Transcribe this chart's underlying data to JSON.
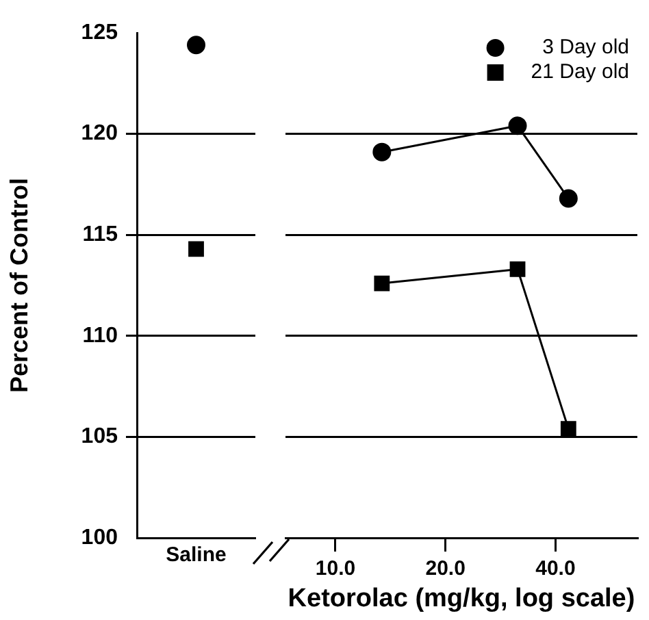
{
  "chart_data": [
    {
      "type": "line",
      "categories": [
        "Saline"
      ],
      "ylabel": "Percent of Control",
      "ylim": [
        100,
        125
      ],
      "yticks": [
        100,
        105,
        110,
        115,
        120,
        125
      ],
      "grid": "y",
      "tick_labels": "xy",
      "series": [
        {
          "color": "#000000",
          "marker": "circle",
          "values": [
            124.4
          ]
        },
        {
          "color": "#000000",
          "marker": "square",
          "values": [
            114.3
          ]
        }
      ]
    },
    {
      "type": "line",
      "log": "x",
      "xlabel": "Ketorolac (mg/kg, log scale)",
      "xlim": [
        7.3,
        67
      ],
      "xticks": [
        {
          "value": 10,
          "label": "10.0"
        },
        {
          "value": 20,
          "label": "20.0"
        },
        {
          "value": 40,
          "label": "40.0"
        }
      ],
      "ylim": [
        100,
        125
      ],
      "yticks": [
        100,
        105,
        110,
        115,
        120,
        125
      ],
      "grid": "y",
      "tick_labels": "x",
      "legend": "top right",
      "series": [
        {
          "name": "3 Day old",
          "color": "#000000",
          "marker": "circle",
          "x": [
            13.4,
            31.5,
            43.4
          ],
          "values": [
            119.1,
            120.4,
            116.8
          ]
        },
        {
          "name": "21 Day old",
          "color": "#000000",
          "marker": "square",
          "x": [
            13.4,
            31.5,
            43.4
          ],
          "values": [
            112.6,
            113.3,
            105.4
          ]
        }
      ]
    }
  ]
}
